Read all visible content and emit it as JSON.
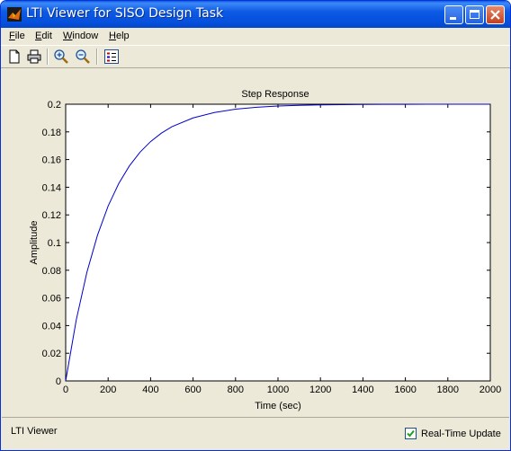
{
  "window": {
    "title": "LTI Viewer for SISO Design Task"
  },
  "menu": {
    "items": [
      {
        "label": "File",
        "mnemonic": "F",
        "rest": "ile"
      },
      {
        "label": "Edit",
        "mnemonic": "E",
        "rest": "dit"
      },
      {
        "label": "Window",
        "mnemonic": "W",
        "rest": "indow"
      },
      {
        "label": "Help",
        "mnemonic": "H",
        "rest": "elp"
      }
    ]
  },
  "toolbar": {
    "icons": [
      "new-file-icon",
      "print-icon",
      "zoom-in-icon",
      "zoom-out-icon",
      "legend-icon"
    ]
  },
  "status": {
    "text": "LTI Viewer",
    "realtime_label": "Real-Time Update",
    "realtime_checked": true
  },
  "colors": {
    "line": "#0000cc",
    "steady_state": "#000000",
    "titlebar": "#0a5ce8"
  },
  "chart_data": {
    "type": "line",
    "title": "Step Response",
    "xlabel": "Time (sec)",
    "ylabel": "Amplitude",
    "xlim": [
      0,
      2000
    ],
    "ylim": [
      0,
      0.2
    ],
    "xticks": [
      0,
      200,
      400,
      600,
      800,
      1000,
      1200,
      1400,
      1600,
      1800,
      2000
    ],
    "yticks": [
      0,
      0.02,
      0.04,
      0.06,
      0.08,
      0.1,
      0.12,
      0.14,
      0.16,
      0.18,
      0.2
    ],
    "ytick_labels": [
      "0",
      "0.02",
      "0.04",
      "0.06",
      "0.08",
      "0.1",
      "0.12",
      "0.14",
      "0.16",
      "0.18",
      "0.2"
    ],
    "xtick_labels": [
      "0",
      "200",
      "400",
      "600",
      "800",
      "1000",
      "1200",
      "1400",
      "1600",
      "1800",
      "2000"
    ],
    "steady_state": 0.2,
    "steady_state_end": 1650,
    "series": [
      {
        "x": [
          0,
          50,
          100,
          150,
          200,
          250,
          300,
          350,
          400,
          450,
          500,
          600,
          700,
          800,
          900,
          1000,
          1100,
          1200,
          1300,
          1400,
          1500,
          1600,
          1700,
          1800,
          1900,
          2000
        ],
        "values": [
          0,
          0.0442,
          0.0786,
          0.1054,
          0.1264,
          0.1427,
          0.1554,
          0.1653,
          0.173,
          0.179,
          0.1837,
          0.1901,
          0.194,
          0.1964,
          0.1978,
          0.1987,
          0.1992,
          0.1995,
          0.1997,
          0.1998,
          0.1999,
          0.1999,
          0.2,
          0.2,
          0.2,
          0.2
        ]
      }
    ]
  }
}
